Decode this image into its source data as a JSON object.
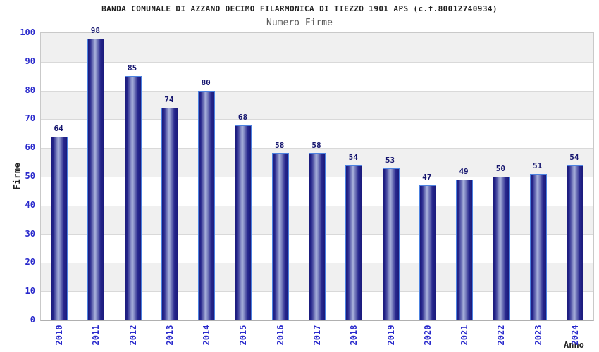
{
  "chart_data": {
    "type": "bar",
    "title": "BANDA COMUNALE DI AZZANO DECIMO FILARMONICA DI TIEZZO 1901 APS (c.f.80012740934)",
    "subtitle": "Numero Firme",
    "xlabel": "Anno",
    "ylabel": "Firme",
    "categories": [
      "2010",
      "2011",
      "2012",
      "2013",
      "2014",
      "2015",
      "2016",
      "2017",
      "2018",
      "2019",
      "2020",
      "2021",
      "2022",
      "2023",
      "2024"
    ],
    "values": [
      64,
      98,
      85,
      74,
      80,
      68,
      58,
      58,
      54,
      53,
      47,
      49,
      50,
      51,
      54
    ],
    "ylim": [
      0,
      100
    ],
    "ytick_step": 10,
    "grid": true,
    "legend_position": "none",
    "row_bands": "alternating gray every 10 units (10-20, 30-40, 50-60, 70-80, 90-100)"
  },
  "colors": {
    "tick_label": "#2929cc",
    "value_label": "#15156e",
    "title": "#222222",
    "subtitle": "#5a5a5a",
    "bar_edge": "#1b1b7c",
    "bar_mid": "#26268c",
    "bar_center": "#aab3dc",
    "bar_border": "#4d82e0",
    "row_band": "#f0f0f0",
    "gridline": "#d9d9d9",
    "plot_border": "#c9c9c9",
    "background": "#ffffff"
  }
}
